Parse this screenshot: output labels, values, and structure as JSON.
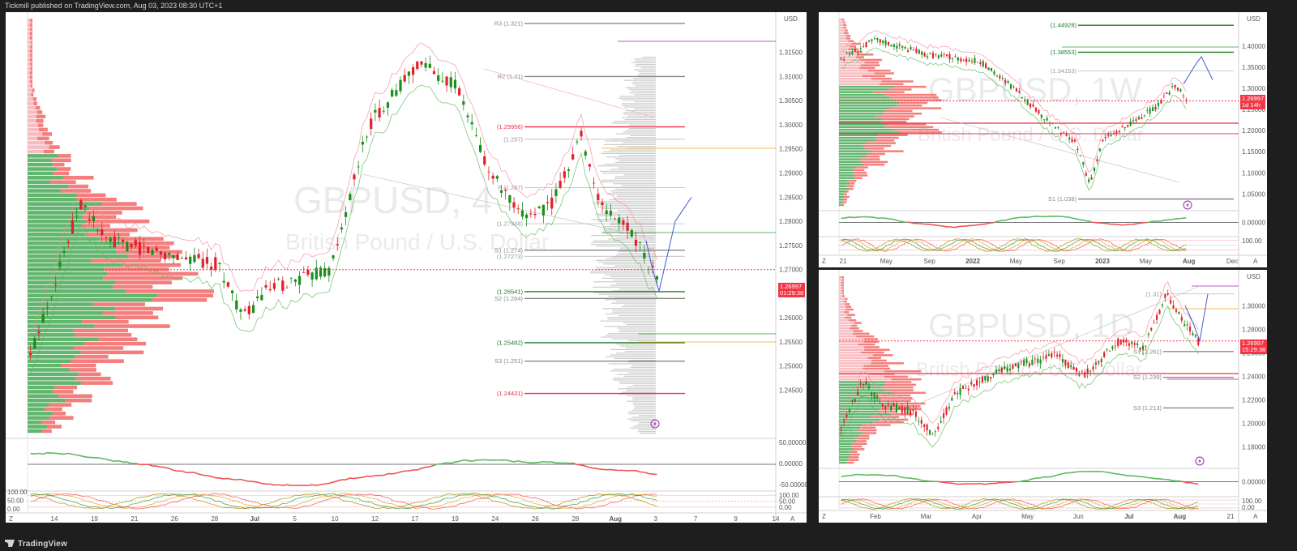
{
  "header": {
    "published": "Tickmill published on TradingView.com, Aug 03, 2023 08:30 UTC+1"
  },
  "footer": {
    "brand": "TradingView"
  },
  "colors": {
    "bull": "#1b8f1b",
    "bear": "#e0212b",
    "dark_green": "#1e7a1e",
    "red_level": "#e8304a",
    "blue_path": "#3b5bdb",
    "orange": "#f0a020"
  },
  "chart_data": [
    {
      "type": "candlestick",
      "id": "h4",
      "watermark_title": "GBPUSD, 4",
      "watermark_subtitle": "British Pound / U.S. Dollar",
      "unit": "USD",
      "current_price": "1.26997",
      "countdown": "01:29:38",
      "ylim": [
        1.236,
        1.322
      ],
      "y_ticks": [
        "1.31500",
        "1.31000",
        "1.30500",
        "1.30000",
        "1.29500",
        "1.29000",
        "1.28500",
        "1.28000",
        "1.27500",
        "1.27000",
        "1.26500",
        "1.26000",
        "1.25500",
        "1.25000",
        "1.24500"
      ],
      "x_ticks": [
        "14",
        "19",
        "21",
        "26",
        "28",
        "Jul",
        "5",
        "10",
        "12",
        "17",
        "19",
        "24",
        "26",
        "28",
        "Aug",
        "3",
        "7",
        "9",
        "14"
      ],
      "levels": [
        {
          "label": "R3 (1.321)",
          "value": 1.321,
          "color": "#888888"
        },
        {
          "label": "R2 (1.31)",
          "value": 1.31,
          "color": "#888888"
        },
        {
          "label": "(1.29956)",
          "value": 1.29956,
          "color": "#e8304a"
        },
        {
          "label": "(1.297)",
          "value": 1.297,
          "color": "#bbbbbb"
        },
        {
          "label": "P (1.287)",
          "value": 1.287,
          "color": "#bbbbbb"
        },
        {
          "label": "(1.27948)",
          "value": 1.27948,
          "color": "#bbbbbb"
        },
        {
          "label": "S1 (1.274)",
          "value": 1.274,
          "color": "#888888"
        },
        {
          "label": "(1.27273)",
          "value": 1.27273,
          "color": "#bbbbbb"
        },
        {
          "label": "(1.26541)",
          "value": 1.26541,
          "color": "#1e7a1e"
        },
        {
          "label": "S2 (1.264)",
          "value": 1.264,
          "color": "#888888"
        },
        {
          "label": "(1.25482)",
          "value": 1.25482,
          "color": "#1e7a1e"
        },
        {
          "label": "S3 (1.251)",
          "value": 1.251,
          "color": "#888888"
        },
        {
          "label": "(1.24431)",
          "value": 1.24431,
          "color": "#e8304a"
        }
      ],
      "rsi_ticks": [
        "50.00000",
        "0.00000",
        "-50.00000"
      ],
      "stoch_ticks": [
        "100.00",
        "50.00",
        "0.00"
      ],
      "osc_labels": [
        "100.00",
        "50.00",
        "0.00"
      ]
    },
    {
      "type": "candlestick",
      "id": "w1",
      "watermark_title": "GBPUSD, 1W",
      "watermark_subtitle": "British Pound / U.S. Dollar",
      "unit": "USD",
      "current_price": "1.26997",
      "countdown": "1d 14h",
      "ylim": [
        1.02,
        1.465
      ],
      "y_ticks": [
        "1.40000",
        "1.35000",
        "1.30000",
        "1.25000",
        "1.20000",
        "1.15000",
        "1.10000",
        "1.05000"
      ],
      "x_ticks": [
        "21",
        "May",
        "Sep",
        "2022",
        "May",
        "Sep",
        "2023",
        "May",
        "Aug",
        "Dec"
      ],
      "levels": [
        {
          "label": "(1.44928)",
          "value": 1.44928,
          "color": "#1e7a1e"
        },
        {
          "label": "(1.38553)",
          "value": 1.38553,
          "color": "#1e7a1e"
        },
        {
          "label": "(1.34153)",
          "value": 1.34153,
          "color": "#bbbbbb"
        },
        {
          "label": "S1 (1.038)",
          "value": 1.038,
          "color": "#888888"
        }
      ],
      "rsi_ticks": [
        "0.00000"
      ],
      "stoch_ticks": [
        "100.00"
      ]
    },
    {
      "type": "candlestick",
      "id": "d1",
      "watermark_title": "GBPUSD, 1D",
      "watermark_subtitle": "British Pound / U.S. Dollar",
      "unit": "USD",
      "current_price": "1.26997",
      "countdown": "15:29:38",
      "ylim": [
        1.165,
        1.325
      ],
      "y_ticks": [
        "1.30000",
        "1.28000",
        "1.26000",
        "1.24000",
        "1.22000",
        "1.20000",
        "1.18000"
      ],
      "x_ticks": [
        "Feb",
        "Mar",
        "Apr",
        "May",
        "Jun",
        "Jul",
        "Aug",
        "21"
      ],
      "levels": [
        {
          "label": "(1.31)",
          "value": 1.31,
          "color": "#bbbbbb"
        },
        {
          "label": "S1 (1.261)",
          "value": 1.261,
          "color": "#888888"
        },
        {
          "label": "S2 (1.239)",
          "value": 1.239,
          "color": "#888888"
        },
        {
          "label": "S3 (1.213)",
          "value": 1.213,
          "color": "#888888"
        }
      ],
      "rsi_ticks": [
        "0.00000"
      ],
      "stoch_ticks": [
        "100.00",
        "0.00"
      ]
    }
  ]
}
